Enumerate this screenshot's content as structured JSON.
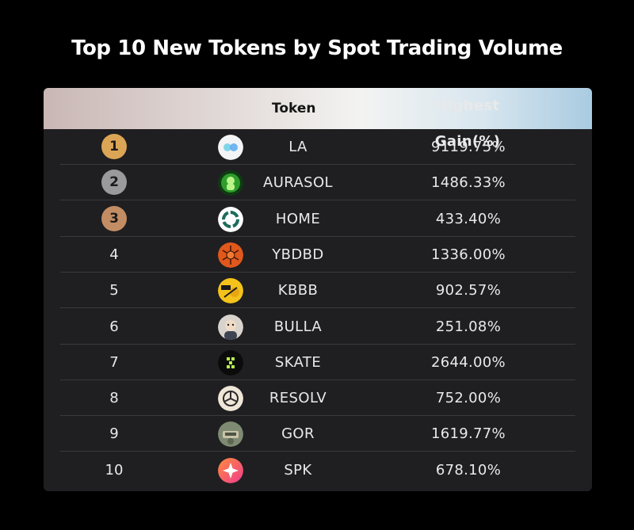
{
  "title": "Top 10 New Tokens by Spot Trading Volume",
  "chart_data": {
    "type": "table",
    "title": "Top 10 New Tokens by Spot Trading Volume",
    "columns": [
      "",
      "Token",
      "Highest Gain(%)"
    ],
    "rows": [
      {
        "rank": "1",
        "token": "LA",
        "gain": "9119.75%",
        "logo": "la-icon",
        "medal": "gold"
      },
      {
        "rank": "2",
        "token": "AURASOL",
        "gain": "1486.33%",
        "logo": "aurasol-icon",
        "medal": "silver"
      },
      {
        "rank": "3",
        "token": "HOME",
        "gain": "433.40%",
        "logo": "home-icon",
        "medal": "bronze"
      },
      {
        "rank": "4",
        "token": "YBDBD",
        "gain": "1336.00%",
        "logo": "ybdbd-icon"
      },
      {
        "rank": "5",
        "token": "KBBB",
        "gain": "902.57%",
        "logo": "kbbb-icon"
      },
      {
        "rank": "6",
        "token": "BULLA",
        "gain": "251.08%",
        "logo": "bulla-icon"
      },
      {
        "rank": "7",
        "token": "SKATE",
        "gain": "2644.00%",
        "logo": "skate-icon"
      },
      {
        "rank": "8",
        "token": "RESOLV",
        "gain": "752.00%",
        "logo": "resolv-icon"
      },
      {
        "rank": "9",
        "token": "GOR",
        "gain": "1619.77%",
        "logo": "gor-icon"
      },
      {
        "rank": "10",
        "token": "SPK",
        "gain": "678.10%",
        "logo": "spk-icon"
      }
    ]
  },
  "colors": {
    "gold": "#dca556",
    "silver": "#9a9a9c",
    "bronze": "#c38d64",
    "background": "#000000",
    "card": "#1f1f21"
  }
}
